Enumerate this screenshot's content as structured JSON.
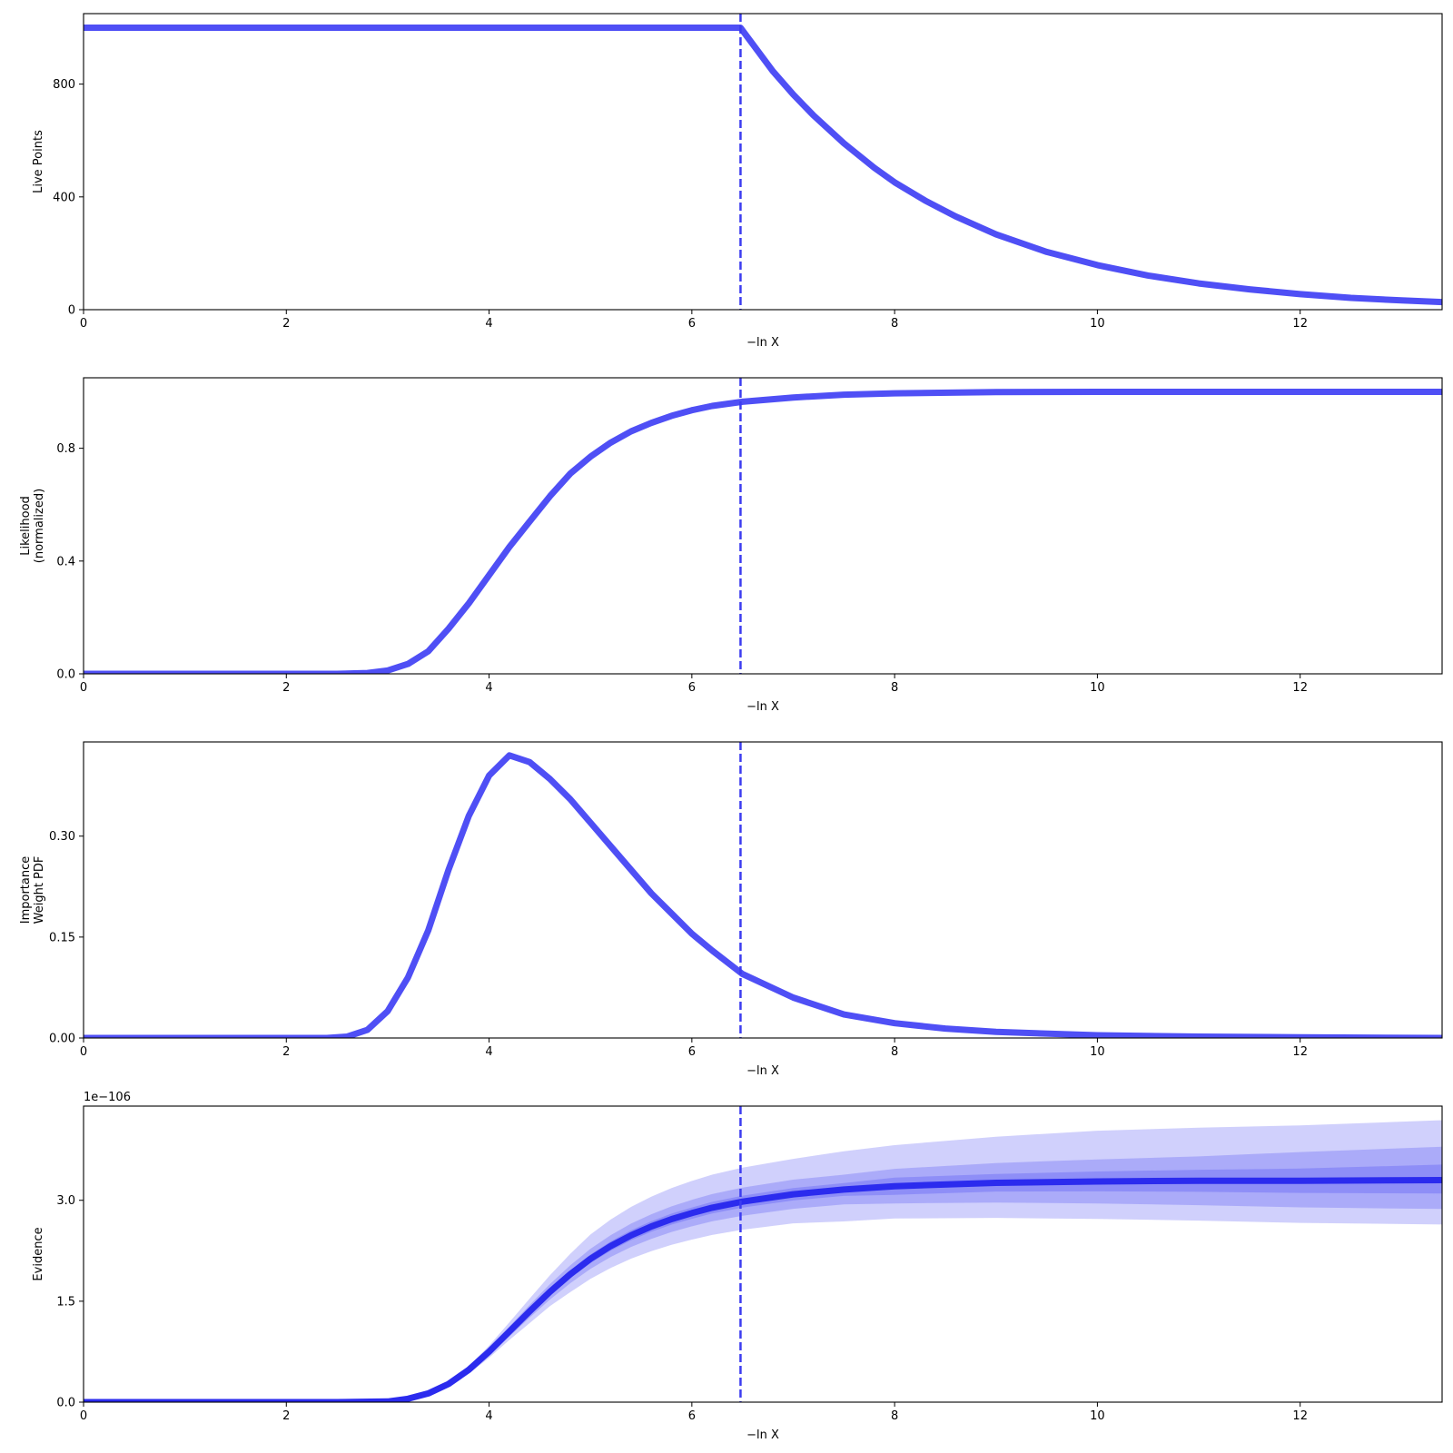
{
  "figure": {
    "background": "#ffffff",
    "line_color": "#4f4ff5",
    "band_color": "#2a2af0"
  },
  "chart_data": [
    {
      "type": "line",
      "xlabel": "−ln X",
      "ylabel": [
        "Live Points"
      ],
      "xlim": [
        0,
        13.4
      ],
      "ylim": [
        0,
        1050
      ],
      "xticks": [
        0,
        2,
        4,
        6,
        8,
        10,
        12
      ],
      "yticks": [
        0,
        400,
        800
      ],
      "ytick_labels": [
        "0",
        "400",
        "800"
      ],
      "vline": 6.48,
      "series": [
        {
          "x": [
            0,
            6.48,
            6.6,
            6.8,
            7.0,
            7.2,
            7.5,
            7.8,
            8.0,
            8.3,
            8.6,
            9.0,
            9.5,
            10.0,
            10.5,
            11.0,
            11.5,
            12.0,
            12.5,
            13.0,
            13.4
          ],
          "y": [
            1000,
            1000,
            942,
            845,
            763,
            689,
            590,
            503,
            452,
            387,
            331,
            267,
            205,
            158,
            121,
            93,
            72,
            55,
            42,
            33,
            27
          ]
        }
      ]
    },
    {
      "type": "line",
      "xlabel": "−ln X",
      "ylabel": [
        "Likelihood",
        "(normalized)"
      ],
      "xlim": [
        0,
        13.4
      ],
      "ylim": [
        0,
        1.05
      ],
      "xticks": [
        0,
        2,
        4,
        6,
        8,
        10,
        12
      ],
      "yticks": [
        0,
        0.4,
        0.8
      ],
      "ytick_labels": [
        "0.0",
        "0.4",
        "0.8"
      ],
      "vline": 6.48,
      "series": [
        {
          "x": [
            0,
            2.5,
            2.8,
            3.0,
            3.2,
            3.4,
            3.6,
            3.8,
            4.0,
            4.2,
            4.4,
            4.6,
            4.8,
            5.0,
            5.2,
            5.4,
            5.6,
            5.8,
            6.0,
            6.2,
            6.5,
            7.0,
            7.5,
            8.0,
            9.0,
            10.0,
            13.4
          ],
          "y": [
            0,
            0,
            0.003,
            0.012,
            0.035,
            0.08,
            0.16,
            0.25,
            0.35,
            0.45,
            0.54,
            0.63,
            0.71,
            0.77,
            0.82,
            0.86,
            0.89,
            0.915,
            0.935,
            0.95,
            0.965,
            0.98,
            0.99,
            0.995,
            0.999,
            1.0,
            1.0
          ]
        }
      ]
    },
    {
      "type": "line",
      "xlabel": "−ln X",
      "ylabel": [
        "Importance",
        "Weight PDF"
      ],
      "xlim": [
        0,
        13.4
      ],
      "ylim": [
        0,
        0.44
      ],
      "xticks": [
        0,
        2,
        4,
        6,
        8,
        10,
        12
      ],
      "yticks": [
        0,
        0.15,
        0.3
      ],
      "ytick_labels": [
        "0.00",
        "0.15",
        "0.30"
      ],
      "vline": 6.48,
      "series": [
        {
          "x": [
            0,
            2.4,
            2.6,
            2.8,
            3.0,
            3.2,
            3.4,
            3.6,
            3.8,
            4.0,
            4.2,
            4.4,
            4.6,
            4.8,
            5.0,
            5.2,
            5.4,
            5.6,
            5.8,
            6.0,
            6.2,
            6.5,
            7.0,
            7.5,
            8.0,
            8.5,
            9.0,
            10.0,
            11.0,
            12.0,
            13.4
          ],
          "y": [
            0,
            0.0,
            0.002,
            0.012,
            0.04,
            0.09,
            0.16,
            0.25,
            0.33,
            0.39,
            0.42,
            0.41,
            0.385,
            0.355,
            0.32,
            0.285,
            0.25,
            0.215,
            0.185,
            0.155,
            0.13,
            0.095,
            0.06,
            0.035,
            0.022,
            0.014,
            0.009,
            0.004,
            0.002,
            0.001,
            0.0
          ]
        }
      ]
    },
    {
      "type": "area",
      "xlabel": "−ln X",
      "ylabel": [
        "Evidence"
      ],
      "offset_label": "1e−106",
      "xlim": [
        0,
        13.4
      ],
      "ylim": [
        0,
        4.4
      ],
      "xticks": [
        0,
        2,
        4,
        6,
        8,
        10,
        12
      ],
      "yticks": [
        0,
        1.5,
        3.0
      ],
      "ytick_labels": [
        "0.0",
        "1.5",
        "3.0"
      ],
      "vline": 6.48,
      "series": [
        {
          "x": [
            0,
            2.5,
            3.0,
            3.2,
            3.4,
            3.6,
            3.8,
            4.0,
            4.2,
            4.4,
            4.6,
            4.8,
            5.0,
            5.2,
            5.4,
            5.6,
            5.8,
            6.0,
            6.2,
            6.5,
            7.0,
            7.5,
            8.0,
            9.0,
            10.0,
            11.0,
            12.0,
            13.4
          ],
          "y": [
            0,
            0,
            0.01,
            0.05,
            0.13,
            0.27,
            0.48,
            0.75,
            1.05,
            1.35,
            1.64,
            1.9,
            2.13,
            2.32,
            2.48,
            2.61,
            2.72,
            2.81,
            2.89,
            2.98,
            3.09,
            3.16,
            3.21,
            3.26,
            3.28,
            3.29,
            3.29,
            3.3
          ],
          "bands": [
            {
              "lower_frac": [
                0.96,
                0.96,
                0.96,
                0.96,
                0.96,
                0.96,
                0.97,
                0.97,
                0.97,
                0.97,
                0.97,
                0.97,
                0.97,
                0.97,
                0.97,
                0.97,
                0.97,
                0.97,
                0.97,
                0.97,
                0.97,
                0.97,
                0.96,
                0.96,
                0.955,
                0.95,
                0.945,
                0.94
              ],
              "upper_frac": [
                1.04,
                1.04,
                1.04,
                1.04,
                1.04,
                1.04,
                1.03,
                1.03,
                1.03,
                1.03,
                1.03,
                1.03,
                1.03,
                1.03,
                1.03,
                1.03,
                1.03,
                1.03,
                1.03,
                1.03,
                1.03,
                1.03,
                1.04,
                1.04,
                1.045,
                1.05,
                1.055,
                1.07
              ]
            },
            {
              "lower_frac": [
                0.92,
                0.92,
                0.92,
                0.92,
                0.92,
                0.92,
                0.93,
                0.93,
                0.93,
                0.93,
                0.93,
                0.93,
                0.93,
                0.93,
                0.93,
                0.93,
                0.93,
                0.93,
                0.93,
                0.93,
                0.93,
                0.93,
                0.92,
                0.91,
                0.9,
                0.89,
                0.88,
                0.87
              ],
              "upper_frac": [
                1.08,
                1.08,
                1.08,
                1.08,
                1.08,
                1.08,
                1.07,
                1.07,
                1.07,
                1.07,
                1.07,
                1.07,
                1.07,
                1.07,
                1.07,
                1.07,
                1.07,
                1.07,
                1.07,
                1.07,
                1.07,
                1.07,
                1.08,
                1.09,
                1.1,
                1.11,
                1.13,
                1.15
              ]
            },
            {
              "lower_frac": [
                0.86,
                0.86,
                0.86,
                0.86,
                0.86,
                0.86,
                0.88,
                0.88,
                0.88,
                0.87,
                0.87,
                0.86,
                0.86,
                0.86,
                0.86,
                0.86,
                0.86,
                0.86,
                0.86,
                0.86,
                0.86,
                0.85,
                0.85,
                0.84,
                0.83,
                0.82,
                0.81,
                0.8
              ],
              "upper_frac": [
                1.14,
                1.14,
                1.14,
                1.14,
                1.14,
                1.14,
                1.12,
                1.12,
                1.13,
                1.14,
                1.15,
                1.16,
                1.17,
                1.17,
                1.17,
                1.17,
                1.17,
                1.17,
                1.17,
                1.17,
                1.17,
                1.18,
                1.19,
                1.21,
                1.23,
                1.24,
                1.25,
                1.27
              ]
            }
          ]
        }
      ]
    }
  ]
}
